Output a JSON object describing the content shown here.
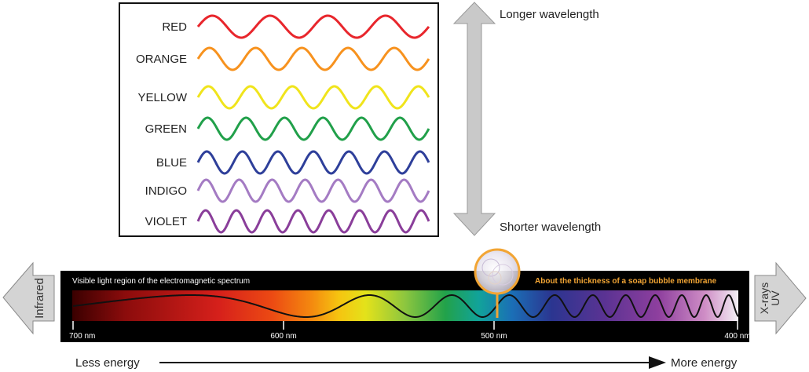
{
  "colors_panel": {
    "items": [
      {
        "label": "RED",
        "color": "#e8262c",
        "cycles": 4
      },
      {
        "label": "ORANGE",
        "color": "#f7921e",
        "cycles": 5
      },
      {
        "label": "YELLOW",
        "color": "#f0e41c",
        "cycles": 5.5
      },
      {
        "label": "GREEN",
        "color": "#21a04a",
        "cycles": 6
      },
      {
        "label": "BLUE",
        "color": "#2e3f9a",
        "cycles": 6.5
      },
      {
        "label": "INDIGO",
        "color": "#a47bc3",
        "cycles": 7
      },
      {
        "label": "VIOLET",
        "color": "#8a3e9a",
        "cycles": 7.5
      }
    ]
  },
  "wavelength_arrow": {
    "top_label": "Longer wavelength",
    "bottom_label": "Shorter wavelength"
  },
  "spectrum": {
    "title": "Visible light region of the electromagnetic spectrum",
    "bubble_label": "About the thickness of a soap bubble membrane",
    "ticks": [
      "700 nm",
      "600 nm",
      "500 nm",
      "400 nm"
    ],
    "accent_color": "#f2a534"
  },
  "side_arrows": {
    "left": "Infrared",
    "right_line1": "X-rays",
    "right_line2": "UV"
  },
  "energy_axis": {
    "left": "Less energy",
    "right": "More energy"
  }
}
